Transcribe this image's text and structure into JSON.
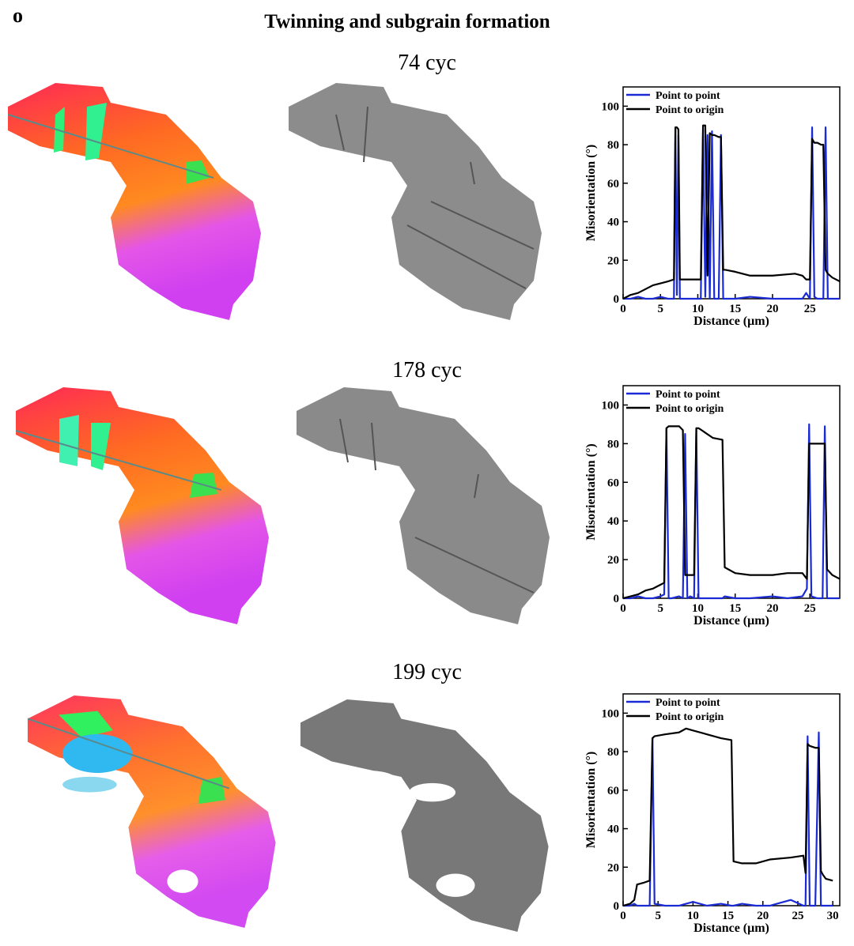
{
  "figure": {
    "label": "o",
    "title": "Twinning and subgrain formation"
  },
  "chart_data": [
    {
      "type": "line",
      "title": "74 cyc",
      "xlabel": "Distance (μm)",
      "ylabel": "Misorientation (°)",
      "x": [
        0,
        1,
        2,
        3,
        4,
        5,
        6,
        6.8,
        7,
        7.2,
        7.4,
        7.6,
        8,
        10.4,
        10.7,
        11,
        11.3,
        11.6,
        11.9,
        12.2,
        12.8,
        13.1,
        13.4,
        13.7,
        15,
        17,
        20,
        23,
        24,
        24.5,
        25,
        25.3,
        25.6,
        26,
        26.5,
        26.8,
        27.1,
        27.4,
        28,
        29
      ],
      "series": [
        {
          "name": "Point to point",
          "color": "#1a2ad4",
          "values": [
            0,
            0,
            1,
            0,
            0,
            1,
            0,
            0,
            88,
            2,
            85,
            0,
            0,
            0,
            88,
            1,
            85,
            0,
            87,
            0,
            0,
            85,
            0,
            0,
            0,
            1,
            0,
            0,
            0,
            3,
            0,
            89,
            1,
            0,
            0,
            0,
            89,
            0,
            0,
            0
          ]
        },
        {
          "name": "Point to origin",
          "color": "#000000",
          "values": [
            0,
            2,
            3,
            5,
            7,
            8,
            9,
            10,
            89,
            89,
            88,
            10,
            10,
            10,
            90,
            90,
            12,
            86,
            85,
            85,
            84,
            84,
            15,
            15,
            14,
            12,
            12,
            13,
            12,
            10,
            10,
            83,
            81,
            81,
            80,
            80,
            15,
            13,
            11,
            9
          ]
        }
      ],
      "xlim": [
        0,
        29
      ],
      "ylim": [
        0,
        110
      ],
      "xticks": [
        0,
        5,
        10,
        15,
        20,
        25
      ],
      "yticks": [
        0,
        20,
        40,
        60,
        80,
        100
      ],
      "legend": "upper left"
    },
    {
      "type": "line",
      "title": "178 cyc",
      "xlabel": "Distance (μm)",
      "ylabel": "Misorientation (°)",
      "x": [
        0,
        1,
        2,
        3,
        4,
        5,
        5.5,
        5.8,
        6.1,
        6.5,
        7.5,
        8,
        8.3,
        8.6,
        9,
        9.5,
        9.8,
        10.1,
        10.5,
        12,
        13.3,
        13.6,
        15,
        17,
        20,
        22,
        24,
        24.6,
        24.9,
        25.2,
        26,
        26.7,
        27,
        27.3,
        28,
        29
      ],
      "series": [
        {
          "name": "Point to point",
          "color": "#1a2ad4",
          "values": [
            0,
            0,
            1,
            0,
            0,
            1,
            2,
            88,
            0,
            0,
            1,
            0,
            85,
            0,
            1,
            0,
            88,
            0,
            0,
            0,
            0,
            1,
            0,
            0,
            1,
            0,
            1,
            5,
            90,
            1,
            0,
            0,
            89,
            0,
            0,
            0
          ]
        },
        {
          "name": "Point to origin",
          "color": "#000000",
          "values": [
            0,
            1,
            2,
            4,
            5,
            7,
            8,
            88,
            89,
            89,
            89,
            87,
            12,
            12,
            12,
            12,
            88,
            88,
            87,
            83,
            82,
            16,
            13,
            12,
            12,
            13,
            13,
            10,
            80,
            80,
            80,
            80,
            80,
            15,
            12,
            10
          ]
        }
      ],
      "xlim": [
        0,
        29
      ],
      "ylim": [
        0,
        110
      ],
      "xticks": [
        0,
        5,
        10,
        15,
        20,
        25
      ],
      "yticks": [
        0,
        20,
        40,
        60,
        80,
        100
      ],
      "legend": "upper left"
    },
    {
      "type": "line",
      "title": "199 cyc",
      "xlabel": "Distance (μm)",
      "ylabel": "Misorientation (°)",
      "x": [
        0,
        1,
        1.6,
        2,
        3,
        3.8,
        4.2,
        4.5,
        6,
        8,
        9,
        10,
        12,
        14,
        15.5,
        15.8,
        17,
        19,
        21,
        24,
        25.8,
        26.1,
        26.4,
        26.7,
        27.5,
        28,
        28.3,
        28.6,
        29,
        30
      ],
      "series": [
        {
          "name": "Point to point",
          "color": "#1a2ad4",
          "values": [
            0,
            0,
            1,
            0,
            0,
            0,
            87,
            1,
            0,
            0,
            1,
            2,
            0,
            1,
            0,
            0,
            1,
            0,
            0,
            3,
            0,
            0,
            88,
            0,
            0,
            90,
            0,
            0,
            0,
            0
          ]
        },
        {
          "name": "Point to origin",
          "color": "#000000",
          "values": [
            0,
            1,
            3,
            11,
            12,
            13,
            87,
            88,
            89,
            90,
            92,
            91,
            89,
            87,
            86,
            23,
            22,
            22,
            24,
            25,
            26,
            17,
            84,
            83,
            82,
            82,
            18,
            16,
            14,
            13
          ]
        }
      ],
      "xlim": [
        0,
        31
      ],
      "ylim": [
        0,
        110
      ],
      "xticks": [
        0,
        5,
        10,
        15,
        20,
        25,
        30
      ],
      "yticks": [
        0,
        20,
        40,
        60,
        80,
        100
      ],
      "legend": "upper left"
    }
  ]
}
